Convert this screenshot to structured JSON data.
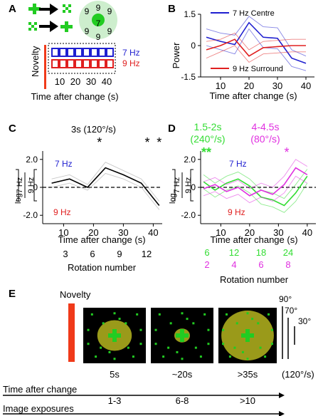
{
  "colors": {
    "blue": "#1f1fd0",
    "red": "#e02020",
    "green": "#33dd33",
    "magenta": "#e030e0",
    "grey": "#9a9a9a",
    "novelty_red": "#f03a1a",
    "stim_green": "#22cc22",
    "ellipse": "#9a9a1a"
  },
  "panelA": {
    "letter": "A",
    "digits": [
      "9",
      "9",
      "9",
      "7",
      "9",
      "9",
      "9"
    ],
    "novelty_label": "Novelty",
    "legend": [
      {
        "label": "7 Hz",
        "color": "#1f1fd0"
      },
      {
        "label": "9 Hz",
        "color": "#e02020"
      }
    ],
    "ticks": [
      "10",
      "20",
      "30",
      "40"
    ],
    "xlabel": "Time after change (s)"
  },
  "panelB": {
    "letter": "B",
    "ylabel": "Power",
    "xlabel": "Time after change (s)",
    "legend_blue": "7 Hz Centre",
    "legend_red": "9 Hz Surround"
  },
  "panelC": {
    "letter": "C",
    "title": "3s (120°/s)",
    "label_7": "7 Hz",
    "label_9": "9 Hz",
    "xlabel": "Time after change (s)",
    "rotation_label": "Rotation number"
  },
  "panelD": {
    "letter": "D",
    "title_green_1": "1.5-2s",
    "title_green_2": "(240°/s)",
    "title_magenta_1": "4-4.5s",
    "title_magenta_2": "(80°/s)",
    "label_7": "7 Hz",
    "label_9": "9 Hz",
    "xlabel": "Time after change (s)",
    "rotation_label": "Rotation number"
  },
  "ylabel_log": {
    "log": "log",
    "top": "7 Hz",
    "bottom": "9 Hz"
  },
  "panelE": {
    "letter": "E",
    "novelty_label": "Novelty",
    "scale": {
      "deg90": "90°",
      "deg70": "70°",
      "deg30": "30°"
    },
    "speed": "(120°/s)",
    "times": [
      "5s",
      "~20s",
      ">35s"
    ],
    "time_axis_label": "Time after change",
    "exposures": [
      "1-3",
      "6-8",
      ">10"
    ],
    "exposure_axis_label": "Image exposures",
    "ellipse_fraction": [
      0.55,
      0.25,
      0.9
    ]
  },
  "chart_data": [
    {
      "panel": "B",
      "type": "line",
      "xlabel": "Time after change (s)",
      "ylabel": "Power",
      "xticks": [
        10,
        20,
        30,
        40
      ],
      "yticks": [
        -1.5,
        0,
        1.5
      ],
      "ylim": [
        -1.5,
        1.5
      ],
      "xlim": [
        3,
        43
      ],
      "x": [
        5,
        10,
        15,
        20,
        25,
        30,
        35,
        40
      ],
      "series": [
        {
          "name": "7 Hz Centre",
          "color": "#1f1fd0",
          "values": [
            0.4,
            0.2,
            0.05,
            1.1,
            0.4,
            0.35,
            -0.6,
            -0.85
          ],
          "band_upper": [
            0.8,
            0.6,
            0.5,
            1.4,
            0.9,
            0.85,
            -0.2,
            -0.5
          ],
          "band_lower": [
            0.0,
            -0.2,
            -0.4,
            0.8,
            -0.1,
            -0.15,
            -1.0,
            -1.2
          ]
        },
        {
          "name": "9 Hz Surround",
          "color": "#e02020",
          "values": [
            -0.2,
            0.0,
            0.3,
            -0.5,
            -0.1,
            -0.05,
            0.0,
            0.0
          ],
          "band_upper": [
            0.2,
            0.3,
            0.6,
            -0.2,
            0.2,
            0.25,
            0.3,
            0.3
          ],
          "band_lower": [
            -0.6,
            -0.3,
            0.0,
            -0.8,
            -0.4,
            -0.35,
            -0.3,
            -0.3
          ]
        }
      ]
    },
    {
      "panel": "C",
      "type": "line",
      "xlabel": "Time after change (s)",
      "xticks": [
        10,
        20,
        30,
        40
      ],
      "yticks": [
        -2.0,
        0,
        2.0
      ],
      "ylim": [
        -2.6,
        2.6
      ],
      "xlim": [
        3,
        43
      ],
      "x": [
        6,
        12,
        18,
        24,
        30,
        36,
        42
      ],
      "series": [
        {
          "color": "#000000",
          "values": [
            0.3,
            0.6,
            0.0,
            1.4,
            0.9,
            0.3,
            -1.3
          ],
          "band_upper": [
            0.6,
            0.9,
            0.2,
            1.8,
            1.2,
            0.6,
            -1.0
          ],
          "band_lower": [
            0.0,
            0.3,
            -0.2,
            1.0,
            0.6,
            0.0,
            -1.6
          ]
        }
      ],
      "asterisks_x": [
        22,
        38,
        42
      ],
      "rotation_numbers": [
        "3",
        "6",
        "9",
        "12"
      ]
    },
    {
      "panel": "D",
      "type": "line",
      "xlabel": "Time after change (s)",
      "xticks": [
        10,
        20,
        30,
        40
      ],
      "yticks": [
        -2.0,
        0,
        2.0
      ],
      "ylim": [
        -2.6,
        2.6
      ],
      "xlim": [
        3,
        43
      ],
      "x": [
        4,
        8,
        12,
        16,
        20,
        24,
        28,
        32,
        36,
        40
      ],
      "series": [
        {
          "name": "1.5-2s (240°/s)",
          "color": "#33dd33",
          "values": [
            0.4,
            -0.2,
            0.3,
            0.6,
            0.1,
            -0.7,
            -0.9,
            -1.3,
            -0.4,
            0.8
          ],
          "band_upper": [
            0.9,
            0.3,
            0.8,
            1.1,
            0.6,
            -0.2,
            -0.4,
            -0.8,
            0.2,
            1.3
          ],
          "band_lower": [
            -0.1,
            -0.7,
            -0.2,
            0.1,
            -0.4,
            -1.2,
            -1.4,
            -1.8,
            -1.0,
            0.3
          ]
        },
        {
          "name": "4-4.5s (80°/s)",
          "color": "#e030e0",
          "values": [
            -0.1,
            0.2,
            -0.3,
            0.0,
            -0.6,
            -0.2,
            -0.5,
            0.2,
            1.4,
            0.9
          ],
          "band_upper": [
            0.4,
            0.7,
            0.2,
            0.5,
            -0.1,
            0.3,
            0.0,
            0.8,
            2.0,
            1.5
          ],
          "band_lower": [
            -0.6,
            -0.3,
            -0.8,
            -0.5,
            -1.1,
            -0.7,
            -1.0,
            -0.4,
            0.8,
            0.3
          ]
        }
      ],
      "asterisks": [
        {
          "text": "**",
          "color": "#33dd33"
        },
        {
          "text": "*",
          "color": "#e030e0"
        }
      ],
      "rotation_rows": [
        {
          "color": "#33dd33",
          "values": [
            "6",
            "12",
            "18",
            "24"
          ]
        },
        {
          "color": "#e030e0",
          "values": [
            "2",
            "4",
            "6",
            "8"
          ]
        }
      ]
    }
  ]
}
